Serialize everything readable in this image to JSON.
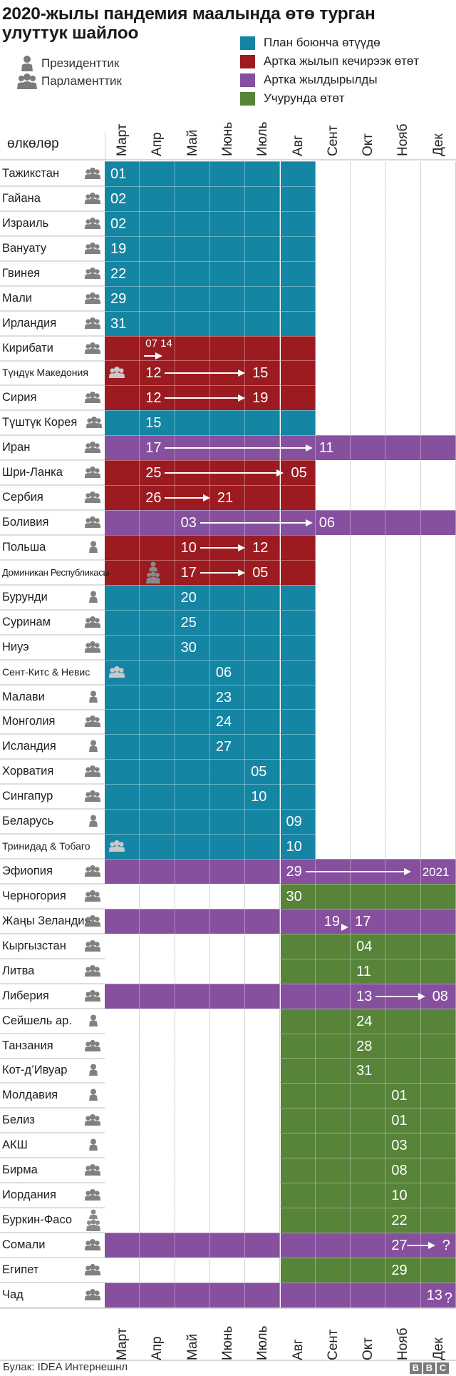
{
  "title": "2020-жылы пандемия маалында өтө турган улуттук шайлоо",
  "kind_legend": [
    {
      "kind": "presidential",
      "icon": "person-icon",
      "label": "Президенттик"
    },
    {
      "kind": "parliamentary",
      "icon": "group-icon",
      "label": "Парламенттик"
    }
  ],
  "color_legend": [
    {
      "key": "blue",
      "color": "#1585a4",
      "label": "План боюнча өтүүдө"
    },
    {
      "key": "red",
      "color": "#9c1b20",
      "label": "Артка жылып кечирээк өтөт"
    },
    {
      "key": "purple",
      "color": "#86509f",
      "label": "Артка жылдырылды"
    },
    {
      "key": "green",
      "color": "#58843a",
      "label": "Учурунда өтөт"
    }
  ],
  "header": {
    "countries_label": "өлкөлөр"
  },
  "months": [
    "Март",
    "Апр",
    "Май",
    "Июнь",
    "Июль",
    "Авг",
    "Сент",
    "Окт",
    "Нояб",
    "Дек"
  ],
  "source": "Булак: IDEA Интернешнл",
  "logo": [
    "B",
    "B",
    "C"
  ],
  "chart_data": {
    "type": "table",
    "title": "2020-жылы пандемия маалында өтө турган улуттук шайлоо",
    "xlabel": "",
    "ylabel": "өлкөлөр",
    "categories": [
      "Март",
      "Апр",
      "Май",
      "Июнь",
      "Июль",
      "Авг",
      "Сент",
      "Окт",
      "Нояб",
      "Дек"
    ],
    "legend": {
      "blue": "План боюнча өтүүдө",
      "red": "Артка жылып кечирээк өтөт",
      "purple": "Артка жылдырылды",
      "green": "Учурунда өтөт",
      "presidential": "Президенттик",
      "parliamentary": "Парламенттик"
    },
    "rows": [
      {
        "country": "Тажикстан",
        "kind": "parliamentary",
        "status": "blue",
        "fill": [
          0,
          5
        ],
        "labels": [
          {
            "text": "01",
            "month": 0
          }
        ]
      },
      {
        "country": "Гайана",
        "kind": "parliamentary",
        "status": "blue",
        "fill": [
          0,
          5
        ],
        "labels": [
          {
            "text": "02",
            "month": 0
          }
        ]
      },
      {
        "country": "Израиль",
        "kind": "parliamentary",
        "status": "blue",
        "fill": [
          0,
          5
        ],
        "labels": [
          {
            "text": "02",
            "month": 0
          }
        ]
      },
      {
        "country": "Вануату",
        "kind": "parliamentary",
        "status": "blue",
        "fill": [
          0,
          5
        ],
        "labels": [
          {
            "text": "19",
            "month": 0
          }
        ]
      },
      {
        "country": "Гвинея",
        "kind": "parliamentary",
        "status": "blue",
        "fill": [
          0,
          5
        ],
        "labels": [
          {
            "text": "22",
            "month": 0
          }
        ]
      },
      {
        "country": "Мали",
        "kind": "parliamentary",
        "status": "blue",
        "fill": [
          0,
          5
        ],
        "labels": [
          {
            "text": "29",
            "month": 0
          }
        ]
      },
      {
        "country": "Ирландия",
        "kind": "parliamentary",
        "status": "blue",
        "fill": [
          0,
          5
        ],
        "labels": [
          {
            "text": "31",
            "month": 0
          }
        ]
      },
      {
        "country": "Кирибати",
        "kind": "parliamentary",
        "status": "red",
        "fill": [
          0,
          5
        ],
        "labels": [
          {
            "text": "07 14",
            "month": 1
          }
        ],
        "arrow": {
          "from": 1,
          "to": 1,
          "small": true
        }
      },
      {
        "country": "Түндүк Македония",
        "kind": "parliamentary",
        "status": "red",
        "fill": [
          0,
          5
        ],
        "labels": [
          {
            "text": "12",
            "month": 1
          },
          {
            "text": "15",
            "month": 4
          }
        ],
        "arrow": {
          "from": 1,
          "to": 4
        }
      },
      {
        "country": "Сирия",
        "kind": "parliamentary",
        "status": "red",
        "fill": [
          0,
          5
        ],
        "labels": [
          {
            "text": "12",
            "month": 1
          },
          {
            "text": "19",
            "month": 4
          }
        ],
        "arrow": {
          "from": 1,
          "to": 4
        }
      },
      {
        "country": "Түштүк Корея",
        "kind": "parliamentary",
        "status": "blue",
        "fill": [
          0,
          5
        ],
        "labels": [
          {
            "text": "15",
            "month": 1
          }
        ]
      },
      {
        "country": "Иран",
        "kind": "parliamentary",
        "status": "purple",
        "fill": [
          0,
          9
        ],
        "labels": [
          {
            "text": "17",
            "month": 1
          },
          {
            "text": "11",
            "month": 6
          }
        ],
        "arrow": {
          "from": 1,
          "to": 6
        }
      },
      {
        "country": "Шри-Ланка",
        "kind": "parliamentary",
        "status": "red",
        "fill": [
          0,
          5
        ],
        "labels": [
          {
            "text": "25",
            "month": 1
          },
          {
            "text": "05",
            "month": 5
          }
        ],
        "arrow": {
          "from": 1,
          "to": 5
        }
      },
      {
        "country": "Сербия",
        "kind": "parliamentary",
        "status": "red",
        "fill": [
          0,
          5
        ],
        "labels": [
          {
            "text": "26",
            "month": 1
          },
          {
            "text": "21",
            "month": 3
          }
        ],
        "arrow": {
          "from": 1,
          "to": 3
        }
      },
      {
        "country": "Боливия",
        "kind": "parliamentary",
        "status": "purple",
        "fill": [
          0,
          9
        ],
        "labels": [
          {
            "text": "03",
            "month": 2
          },
          {
            "text": "06",
            "month": 6
          }
        ],
        "arrow": {
          "from": 2,
          "to": 6
        }
      },
      {
        "country": "Польша",
        "kind": "presidential",
        "status": "red",
        "fill": [
          0,
          5
        ],
        "labels": [
          {
            "text": "10",
            "month": 2
          },
          {
            "text": "12",
            "month": 4
          }
        ],
        "arrow": {
          "from": 2,
          "to": 4
        }
      },
      {
        "country": "Доминикан Республикасы",
        "kind": "both",
        "status": "red",
        "fill": [
          0,
          5
        ],
        "labels": [
          {
            "text": "17",
            "month": 2
          },
          {
            "text": "05",
            "month": 4
          }
        ],
        "arrow": {
          "from": 2,
          "to": 4
        }
      },
      {
        "country": "Бурунди",
        "kind": "presidential",
        "status": "blue",
        "fill": [
          0,
          5
        ],
        "labels": [
          {
            "text": "20",
            "month": 2
          }
        ]
      },
      {
        "country": "Суринам",
        "kind": "parliamentary",
        "status": "blue",
        "fill": [
          0,
          5
        ],
        "labels": [
          {
            "text": "25",
            "month": 2
          }
        ]
      },
      {
        "country": "Ниуэ",
        "kind": "parliamentary",
        "status": "blue",
        "fill": [
          0,
          5
        ],
        "labels": [
          {
            "text": "30",
            "month": 2
          }
        ]
      },
      {
        "country": "Сент-Китс & Невис",
        "kind": "parliamentary",
        "status": "blue",
        "fill": [
          0,
          5
        ],
        "labels": [
          {
            "text": "06",
            "month": 3
          }
        ]
      },
      {
        "country": "Малави",
        "kind": "presidential",
        "status": "blue",
        "fill": [
          0,
          5
        ],
        "labels": [
          {
            "text": "23",
            "month": 3
          }
        ]
      },
      {
        "country": "Монголия",
        "kind": "parliamentary",
        "status": "blue",
        "fill": [
          0,
          5
        ],
        "labels": [
          {
            "text": "24",
            "month": 3
          }
        ]
      },
      {
        "country": "Исландия",
        "kind": "presidential",
        "status": "blue",
        "fill": [
          0,
          5
        ],
        "labels": [
          {
            "text": "27",
            "month": 3
          }
        ]
      },
      {
        "country": "Хорватия",
        "kind": "parliamentary",
        "status": "blue",
        "fill": [
          0,
          5
        ],
        "labels": [
          {
            "text": "05",
            "month": 4
          }
        ]
      },
      {
        "country": "Сингапур",
        "kind": "parliamentary",
        "status": "blue",
        "fill": [
          0,
          5
        ],
        "labels": [
          {
            "text": "10",
            "month": 4
          }
        ]
      },
      {
        "country": "Беларусь",
        "kind": "presidential",
        "status": "blue",
        "fill": [
          0,
          5
        ],
        "labels": [
          {
            "text": "09",
            "month": 5
          }
        ]
      },
      {
        "country": "Тринидад & Тобаго",
        "kind": "parliamentary",
        "status": "blue",
        "fill": [
          0,
          5
        ],
        "labels": [
          {
            "text": "10",
            "month": 5
          }
        ]
      },
      {
        "country": "Эфиопия",
        "kind": "parliamentary",
        "status": "purple",
        "fill": [
          0,
          9
        ],
        "labels": [
          {
            "text": "29",
            "month": 5
          },
          {
            "text": "2021",
            "month": 9
          }
        ],
        "arrow": {
          "from": 5,
          "to": 9
        }
      },
      {
        "country": "Черногория",
        "kind": "parliamentary",
        "status": "green",
        "fill": [
          5,
          9
        ],
        "labels": [
          {
            "text": "30",
            "month": 5
          }
        ]
      },
      {
        "country": "Жаңы Зеландия",
        "kind": "parliamentary",
        "status": "purple",
        "fill": [
          0,
          9
        ],
        "labels": [
          {
            "text": "19",
            "month": 6
          },
          {
            "text": "17",
            "month": 7
          }
        ],
        "arrow": {
          "from": 6,
          "to": 7,
          "small": true
        }
      },
      {
        "country": "Кыргызстан",
        "kind": "parliamentary",
        "status": "green",
        "fill": [
          5,
          9
        ],
        "labels": [
          {
            "text": "04",
            "month": 7
          }
        ]
      },
      {
        "country": "Литва",
        "kind": "parliamentary",
        "status": "green",
        "fill": [
          5,
          9
        ],
        "labels": [
          {
            "text": "11",
            "month": 7
          }
        ]
      },
      {
        "country": "Либерия",
        "kind": "parliamentary",
        "status": "purple",
        "fill": [
          0,
          9
        ],
        "labels": [
          {
            "text": "13",
            "month": 7
          },
          {
            "text": "08",
            "month": 9
          }
        ],
        "arrow": {
          "from": 7,
          "to": 9
        }
      },
      {
        "country": "Сейшель ар.",
        "kind": "presidential",
        "status": "green",
        "fill": [
          5,
          9
        ],
        "labels": [
          {
            "text": "24",
            "month": 7
          }
        ]
      },
      {
        "country": "Танзания",
        "kind": "parliamentary",
        "status": "green",
        "fill": [
          5,
          9
        ],
        "labels": [
          {
            "text": "28",
            "month": 7
          }
        ]
      },
      {
        "country": "Кот-д’Ивуар",
        "kind": "presidential",
        "status": "green",
        "fill": [
          5,
          9
        ],
        "labels": [
          {
            "text": "31",
            "month": 7
          }
        ]
      },
      {
        "country": "Молдавия",
        "kind": "presidential",
        "status": "green",
        "fill": [
          5,
          9
        ],
        "labels": [
          {
            "text": "01",
            "month": 8
          }
        ]
      },
      {
        "country": "Белиз",
        "kind": "parliamentary",
        "status": "green",
        "fill": [
          5,
          9
        ],
        "labels": [
          {
            "text": "01",
            "month": 8
          }
        ]
      },
      {
        "country": "АКШ",
        "kind": "presidential",
        "status": "green",
        "fill": [
          5,
          9
        ],
        "labels": [
          {
            "text": "03",
            "month": 8
          }
        ]
      },
      {
        "country": "Бирма",
        "kind": "parliamentary",
        "status": "green",
        "fill": [
          5,
          9
        ],
        "labels": [
          {
            "text": "08",
            "month": 8
          }
        ]
      },
      {
        "country": "Иордания",
        "kind": "parliamentary",
        "status": "green",
        "fill": [
          5,
          9
        ],
        "labels": [
          {
            "text": "10",
            "month": 8
          }
        ]
      },
      {
        "country": "Буркин-Фасо",
        "kind": "both",
        "status": "green",
        "fill": [
          5,
          9
        ],
        "labels": [
          {
            "text": "22",
            "month": 8
          }
        ]
      },
      {
        "country": "Сомали",
        "kind": "parliamentary",
        "status": "purple",
        "fill": [
          0,
          9
        ],
        "labels": [
          {
            "text": "27",
            "month": 8
          },
          {
            "text": "?",
            "month": 9
          }
        ],
        "arrow": {
          "from": 8,
          "to": 9
        }
      },
      {
        "country": "Египет",
        "kind": "parliamentary",
        "status": "green",
        "fill": [
          5,
          9
        ],
        "labels": [
          {
            "text": "29",
            "month": 8
          }
        ]
      },
      {
        "country": "Чад",
        "kind": "parliamentary",
        "status": "purple",
        "fill": [
          0,
          9
        ],
        "labels": [
          {
            "text": "13",
            "month": 9
          },
          {
            "text": "?",
            "month": 9
          }
        ]
      }
    ]
  }
}
